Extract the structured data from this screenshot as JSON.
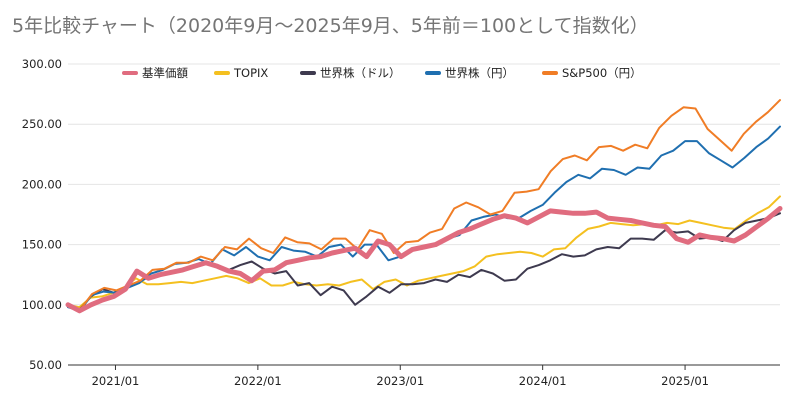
{
  "chart_data": {
    "type": "line",
    "title": "5年比較チャート（2020年9月〜2025年9月、5年前＝100として指数化）",
    "xlabel": "",
    "ylabel": "",
    "ylim": [
      50,
      300
    ],
    "yticks": [
      "50.00",
      "100.00",
      "150.00",
      "200.00",
      "250.00",
      "300.00"
    ],
    "xticks": [
      {
        "label": "2021/01",
        "month": 4
      },
      {
        "label": "2022/01",
        "month": 16
      },
      {
        "label": "2023/01",
        "month": 28
      },
      {
        "label": "2024/01",
        "month": 40
      },
      {
        "label": "2025/01",
        "month": 52
      }
    ],
    "x_start": "2020/09",
    "x_end": "2025/09",
    "legend_position": "top",
    "series": [
      {
        "name": "基準価額",
        "color": "#e06c7f",
        "thick": true,
        "values": [
          100,
          95,
          100,
          104,
          107,
          113,
          128,
          122,
          125,
          127,
          129,
          132,
          135,
          132,
          128,
          126,
          120,
          128,
          129,
          135,
          137,
          139,
          140,
          143,
          145,
          147,
          140,
          153,
          150,
          140,
          146,
          148,
          150,
          155,
          160,
          163,
          167,
          171,
          174,
          172,
          168,
          173,
          178,
          177,
          176,
          176,
          177,
          172,
          171,
          170,
          168,
          166,
          165,
          155,
          152,
          158,
          156,
          155,
          153,
          158,
          165,
          172,
          180
        ]
      },
      {
        "name": "TOPIX",
        "color": "#f4c020",
        "thick": false,
        "values": [
          100,
          98,
          106,
          107,
          110,
          114,
          122,
          117,
          117,
          118,
          119,
          118,
          120,
          122,
          124,
          122,
          118,
          122,
          116,
          116,
          119,
          117,
          116,
          117,
          116,
          119,
          121,
          113,
          119,
          121,
          116,
          120,
          122,
          124,
          126,
          128,
          132,
          140,
          142,
          143,
          144,
          143,
          140,
          146,
          147,
          156,
          163,
          165,
          168,
          167,
          166,
          167,
          166,
          168,
          167,
          170,
          168,
          166,
          164,
          163,
          170,
          176,
          181,
          190
        ]
      },
      {
        "name": "世界株（ドル）",
        "color": "#3e3a4f",
        "thick": false,
        "values": [
          100,
          96,
          107,
          113,
          110,
          115,
          118,
          123,
          124,
          127,
          130,
          131,
          134,
          133,
          129,
          133,
          136,
          130,
          126,
          128,
          116,
          118,
          108,
          115,
          112,
          100,
          107,
          115,
          110,
          117,
          117,
          118,
          121,
          119,
          125,
          123,
          129,
          126,
          120,
          121,
          130,
          133,
          137,
          142,
          140,
          141,
          146,
          148,
          147,
          155,
          155,
          154,
          162,
          160,
          161,
          155,
          156,
          153,
          162,
          168,
          170,
          172,
          176
        ]
      },
      {
        "name": "世界株（円）",
        "color": "#1f6fb0",
        "thick": false,
        "values": [
          98,
          95,
          108,
          111,
          110,
          114,
          118,
          126,
          129,
          134,
          135,
          138,
          134,
          146,
          141,
          148,
          140,
          137,
          148,
          145,
          144,
          140,
          148,
          150,
          140,
          150,
          150,
          137,
          140,
          145,
          148,
          150,
          155,
          158,
          170,
          173,
          175,
          172,
          172,
          178,
          183,
          193,
          202,
          208,
          205,
          213,
          212,
          208,
          214,
          213,
          224,
          228,
          236,
          236,
          226,
          220,
          214,
          222,
          231,
          238,
          248
        ]
      },
      {
        "name": "S&P500（円）",
        "color": "#f07d26",
        "thick": false,
        "values": [
          101,
          96,
          109,
          114,
          112,
          116,
          120,
          129,
          130,
          135,
          135,
          140,
          137,
          148,
          146,
          155,
          147,
          143,
          156,
          152,
          151,
          146,
          155,
          155,
          146,
          162,
          159,
          143,
          152,
          153,
          160,
          163,
          180,
          185,
          181,
          175,
          178,
          193,
          194,
          196,
          211,
          221,
          224,
          220,
          231,
          232,
          228,
          233,
          230,
          247,
          257,
          264,
          263,
          246,
          237,
          228,
          242,
          252,
          260,
          270
        ]
      }
    ]
  }
}
